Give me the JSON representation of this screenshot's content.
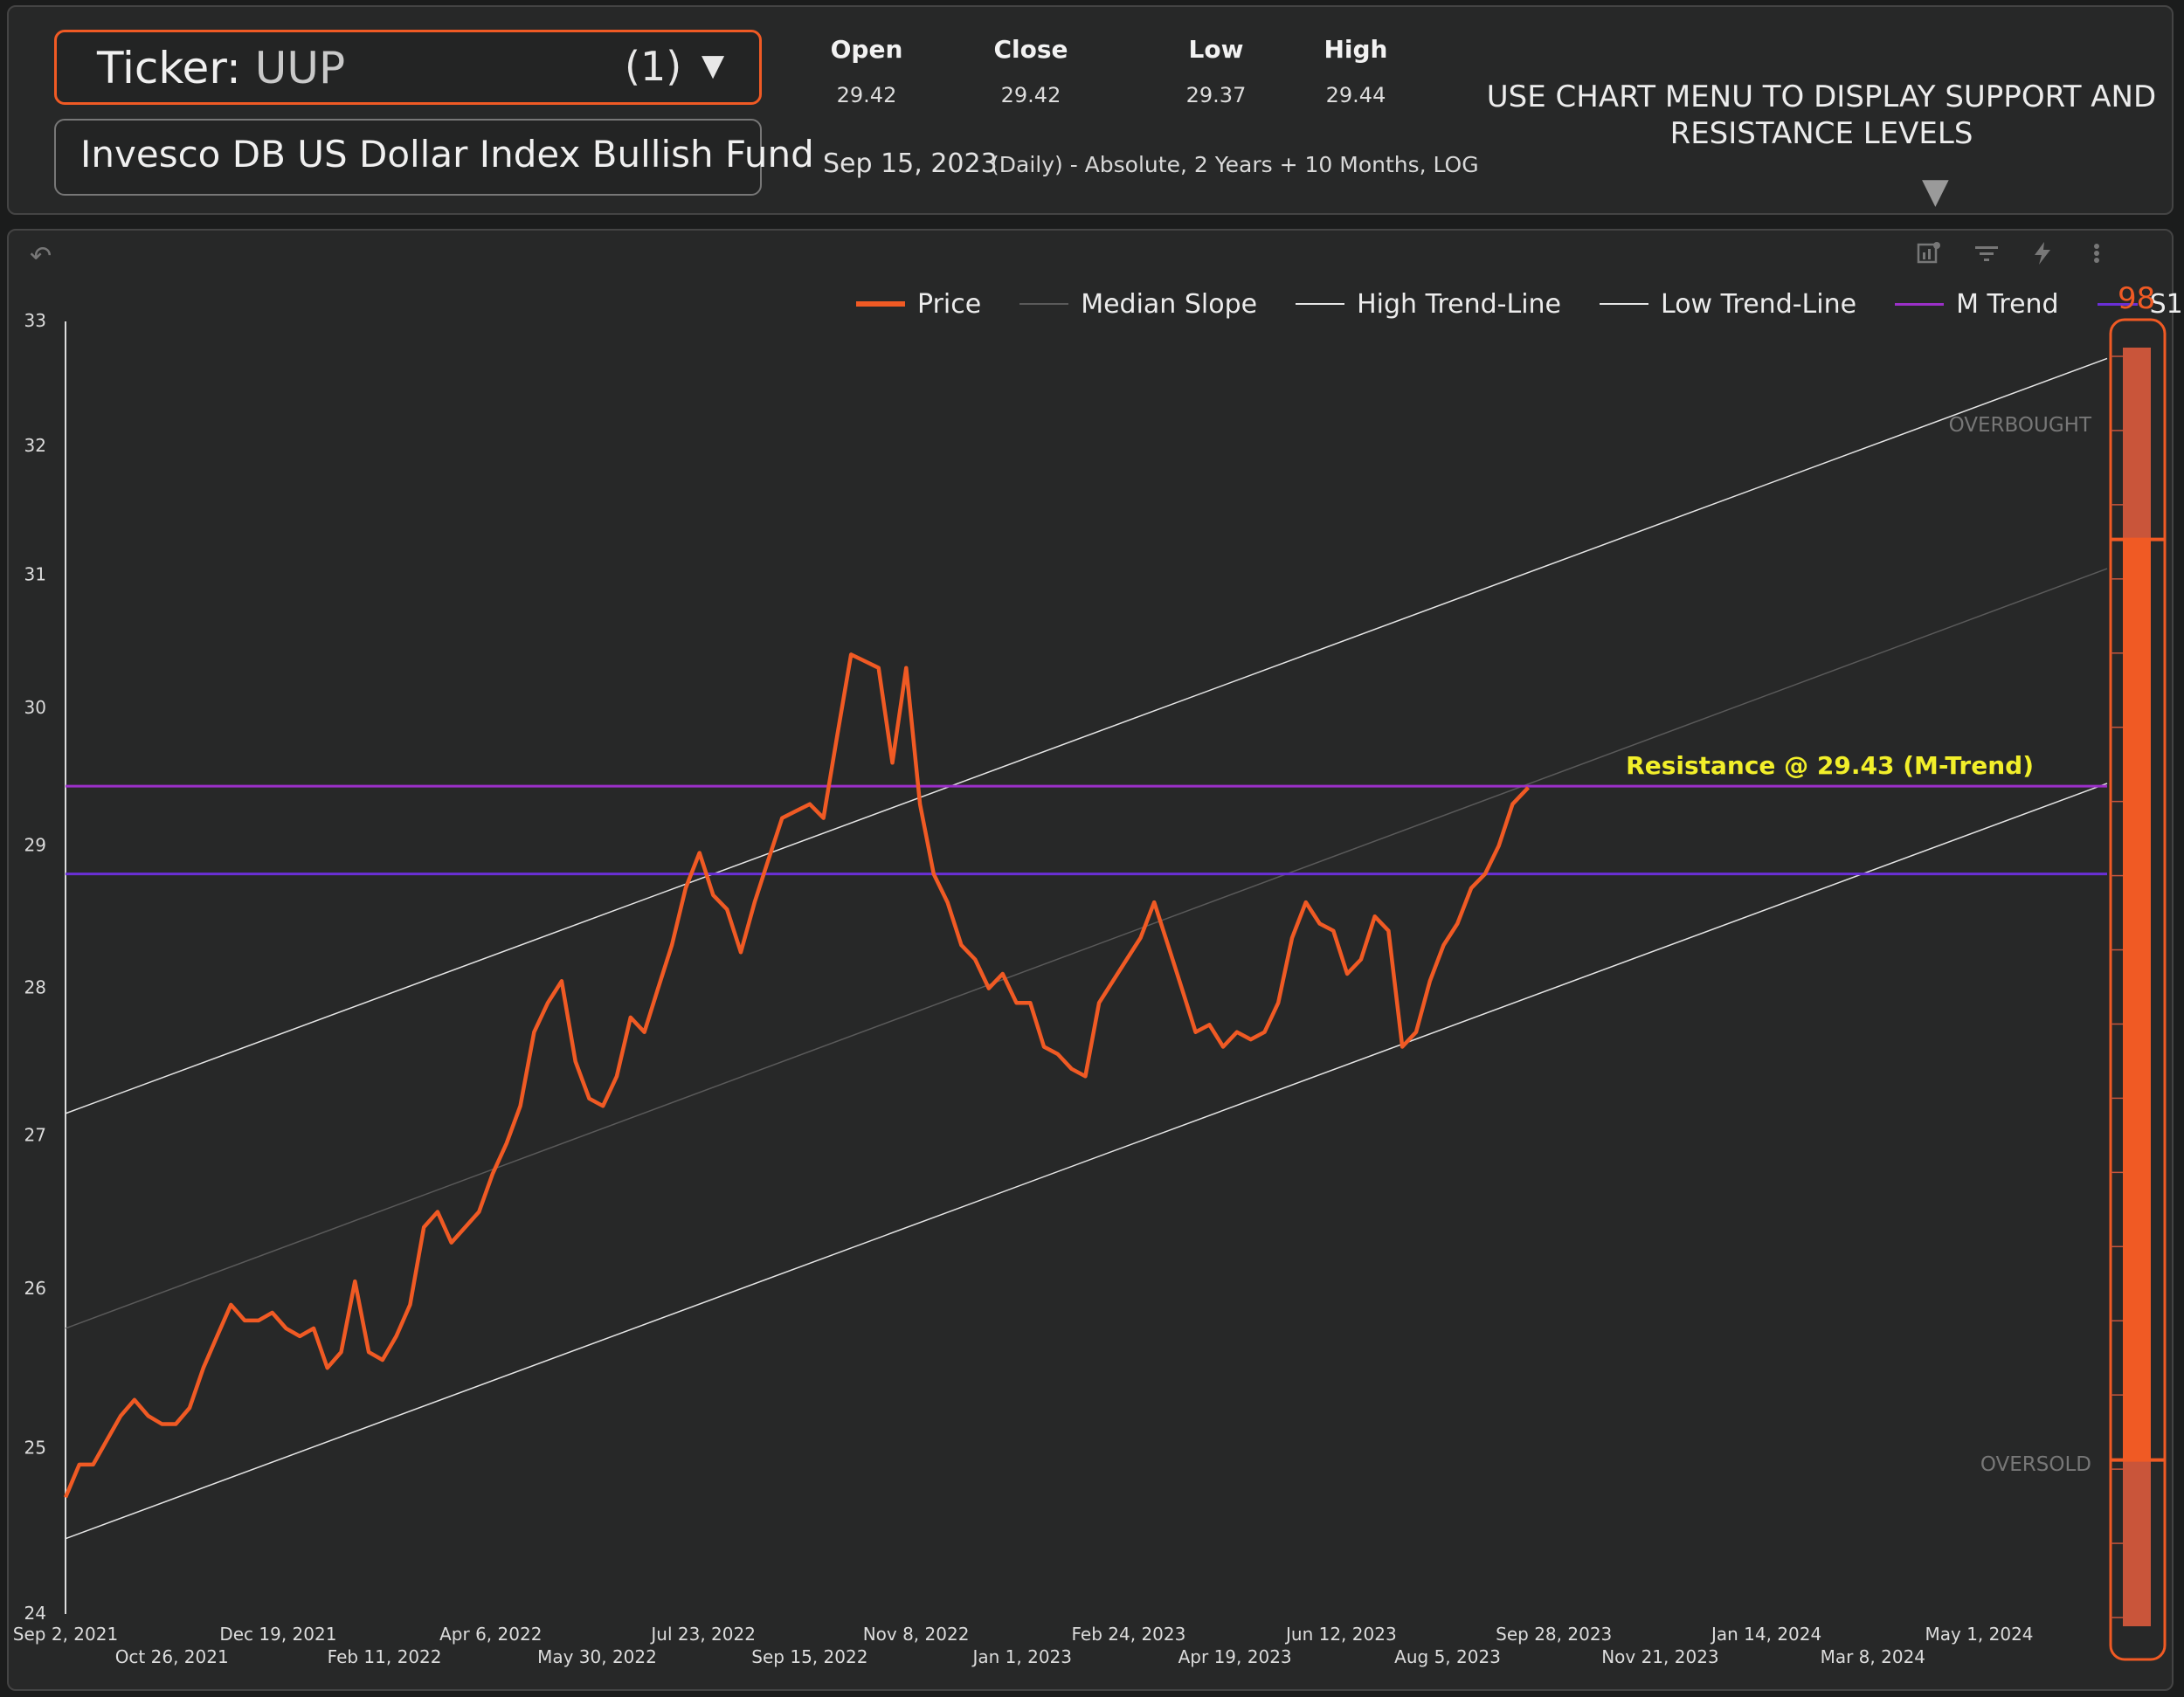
{
  "header": {
    "ticker_label": "Ticker",
    "ticker_sep": ": ",
    "ticker_value": "UUP",
    "ticker_count": "(1)",
    "fund_name": "Invesco DB US Dollar Index Bullish Fund",
    "stats": [
      {
        "label": "Open",
        "value": "29.42"
      },
      {
        "label": "Close",
        "value": "29.42"
      },
      {
        "label": "Low",
        "value": "29.37"
      },
      {
        "label": "High",
        "value": "29.44"
      }
    ],
    "date": "Sep 15, 2023",
    "period": "(Daily) - Absolute, 2 Years + 10 Months, LOG",
    "notice": "USE CHART MENU TO DISPLAY SUPPORT AND RESISTANCE LEVELS"
  },
  "toolbar": {
    "icons": [
      "undo-icon",
      "chart-settings-icon",
      "filter-icon",
      "lightning-icon",
      "more-vert-icon"
    ]
  },
  "legend": {
    "items": [
      {
        "name": "Price",
        "color": "#f05a24"
      },
      {
        "name": "Median Slope",
        "color": "#5a5a5a"
      },
      {
        "name": "High Trend-Line",
        "color": "#e6e6e6"
      },
      {
        "name": "Low Trend-Line",
        "color": "#e6e6e6"
      },
      {
        "name": "M Trend",
        "color": "#9b30c8"
      },
      {
        "name": "S1",
        "color": "#6a2fd6"
      }
    ],
    "page": "98"
  },
  "colors": {
    "price": "#f05a24",
    "resistance_text": "#f2ef2a",
    "m_trend": "#9b30c8",
    "s1": "#6a2fd6",
    "trend": "#e6e6e6",
    "median": "#5a5a5a",
    "gauge": "#f05a24"
  },
  "chart_data": {
    "type": "line",
    "title": "",
    "xlabel": "",
    "ylabel": "",
    "y_scale": "log",
    "ylim": [
      24,
      33
    ],
    "y_ticks": [
      24,
      25,
      26,
      27,
      28,
      29,
      30,
      31,
      32,
      33
    ],
    "x_range": [
      "2021-09-02",
      "2024-07-05"
    ],
    "x_ticks": [
      {
        "date": "2021-09-02",
        "label": "Sep 2, 2021"
      },
      {
        "date": "2021-10-26",
        "label": "Oct 26, 2021"
      },
      {
        "date": "2021-12-19",
        "label": "Dec 19, 2021"
      },
      {
        "date": "2022-02-11",
        "label": "Feb 11, 2022"
      },
      {
        "date": "2022-04-06",
        "label": "Apr 6, 2022"
      },
      {
        "date": "2022-05-30",
        "label": "May 30, 2022"
      },
      {
        "date": "2022-07-23",
        "label": "Jul 23, 2022"
      },
      {
        "date": "2022-09-15",
        "label": "Sep 15, 2022"
      },
      {
        "date": "2022-11-08",
        "label": "Nov 8, 2022"
      },
      {
        "date": "2023-01-01",
        "label": "Jan 1, 2023"
      },
      {
        "date": "2023-02-24",
        "label": "Feb 24, 2023"
      },
      {
        "date": "2023-04-19",
        "label": "Apr 19, 2023"
      },
      {
        "date": "2023-06-12",
        "label": "Jun 12, 2023"
      },
      {
        "date": "2023-08-05",
        "label": "Aug 5, 2023"
      },
      {
        "date": "2023-09-28",
        "label": "Sep 28, 2023"
      },
      {
        "date": "2023-11-21",
        "label": "Nov 21, 2023"
      },
      {
        "date": "2024-01-14",
        "label": "Jan 14, 2024"
      },
      {
        "date": "2024-03-08",
        "label": "Mar 8, 2024"
      },
      {
        "date": "2024-05-01",
        "label": "May 1, 2024"
      }
    ],
    "series": [
      {
        "name": "Price",
        "points": [
          [
            "2021-09-02",
            24.7
          ],
          [
            "2021-09-09",
            24.9
          ],
          [
            "2021-09-16",
            24.9
          ],
          [
            "2021-09-23",
            25.05
          ],
          [
            "2021-09-30",
            25.2
          ],
          [
            "2021-10-07",
            25.3
          ],
          [
            "2021-10-14",
            25.2
          ],
          [
            "2021-10-21",
            25.15
          ],
          [
            "2021-10-28",
            25.15
          ],
          [
            "2021-11-04",
            25.25
          ],
          [
            "2021-11-11",
            25.5
          ],
          [
            "2021-11-18",
            25.7
          ],
          [
            "2021-11-25",
            25.9
          ],
          [
            "2021-12-02",
            25.8
          ],
          [
            "2021-12-09",
            25.8
          ],
          [
            "2021-12-16",
            25.85
          ],
          [
            "2021-12-23",
            25.75
          ],
          [
            "2021-12-30",
            25.7
          ],
          [
            "2022-01-06",
            25.75
          ],
          [
            "2022-01-13",
            25.5
          ],
          [
            "2022-01-20",
            25.6
          ],
          [
            "2022-01-27",
            26.05
          ],
          [
            "2022-02-03",
            25.6
          ],
          [
            "2022-02-10",
            25.55
          ],
          [
            "2022-02-17",
            25.7
          ],
          [
            "2022-02-24",
            25.9
          ],
          [
            "2022-03-03",
            26.4
          ],
          [
            "2022-03-10",
            26.5
          ],
          [
            "2022-03-17",
            26.3
          ],
          [
            "2022-03-24",
            26.4
          ],
          [
            "2022-03-31",
            26.5
          ],
          [
            "2022-04-07",
            26.75
          ],
          [
            "2022-04-14",
            26.95
          ],
          [
            "2022-04-21",
            27.2
          ],
          [
            "2022-04-28",
            27.7
          ],
          [
            "2022-05-05",
            27.9
          ],
          [
            "2022-05-12",
            28.05
          ],
          [
            "2022-05-19",
            27.5
          ],
          [
            "2022-05-26",
            27.25
          ],
          [
            "2022-06-02",
            27.2
          ],
          [
            "2022-06-09",
            27.4
          ],
          [
            "2022-06-16",
            27.8
          ],
          [
            "2022-06-23",
            27.7
          ],
          [
            "2022-06-30",
            28.0
          ],
          [
            "2022-07-07",
            28.3
          ],
          [
            "2022-07-14",
            28.7
          ],
          [
            "2022-07-21",
            28.95
          ],
          [
            "2022-07-28",
            28.65
          ],
          [
            "2022-08-04",
            28.55
          ],
          [
            "2022-08-11",
            28.25
          ],
          [
            "2022-08-18",
            28.6
          ],
          [
            "2022-08-25",
            28.9
          ],
          [
            "2022-09-01",
            29.2
          ],
          [
            "2022-09-08",
            29.25
          ],
          [
            "2022-09-15",
            29.3
          ],
          [
            "2022-09-22",
            29.2
          ],
          [
            "2022-09-29",
            29.8
          ],
          [
            "2022-10-06",
            30.4
          ],
          [
            "2022-10-13",
            30.35
          ],
          [
            "2022-10-20",
            30.3
          ],
          [
            "2022-10-27",
            29.6
          ],
          [
            "2022-11-03",
            30.3
          ],
          [
            "2022-11-10",
            29.3
          ],
          [
            "2022-11-17",
            28.8
          ],
          [
            "2022-11-24",
            28.6
          ],
          [
            "2022-12-01",
            28.3
          ],
          [
            "2022-12-08",
            28.2
          ],
          [
            "2022-12-15",
            28.0
          ],
          [
            "2022-12-22",
            28.1
          ],
          [
            "2022-12-29",
            27.9
          ],
          [
            "2023-01-05",
            27.9
          ],
          [
            "2023-01-12",
            27.6
          ],
          [
            "2023-01-19",
            27.55
          ],
          [
            "2023-01-26",
            27.45
          ],
          [
            "2023-02-02",
            27.4
          ],
          [
            "2023-02-09",
            27.9
          ],
          [
            "2023-02-16",
            28.05
          ],
          [
            "2023-02-23",
            28.2
          ],
          [
            "2023-03-02",
            28.35
          ],
          [
            "2023-03-09",
            28.6
          ],
          [
            "2023-03-16",
            28.3
          ],
          [
            "2023-03-23",
            28.0
          ],
          [
            "2023-03-30",
            27.7
          ],
          [
            "2023-04-06",
            27.75
          ],
          [
            "2023-04-13",
            27.6
          ],
          [
            "2023-04-20",
            27.7
          ],
          [
            "2023-04-27",
            27.65
          ],
          [
            "2023-05-04",
            27.7
          ],
          [
            "2023-05-11",
            27.9
          ],
          [
            "2023-05-18",
            28.35
          ],
          [
            "2023-05-25",
            28.6
          ],
          [
            "2023-06-01",
            28.45
          ],
          [
            "2023-06-08",
            28.4
          ],
          [
            "2023-06-15",
            28.1
          ],
          [
            "2023-06-22",
            28.2
          ],
          [
            "2023-06-29",
            28.5
          ],
          [
            "2023-07-06",
            28.4
          ],
          [
            "2023-07-13",
            27.6
          ],
          [
            "2023-07-20",
            27.7
          ],
          [
            "2023-07-27",
            28.05
          ],
          [
            "2023-08-03",
            28.3
          ],
          [
            "2023-08-10",
            28.45
          ],
          [
            "2023-08-17",
            28.7
          ],
          [
            "2023-08-24",
            28.8
          ],
          [
            "2023-08-31",
            29.0
          ],
          [
            "2023-09-07",
            29.3
          ],
          [
            "2023-09-15",
            29.42
          ]
        ]
      },
      {
        "name": "Median Slope",
        "points": [
          [
            "2021-09-02",
            25.75
          ],
          [
            "2024-07-05",
            31.05
          ]
        ]
      },
      {
        "name": "High Trend-Line",
        "points": [
          [
            "2021-09-02",
            27.15
          ],
          [
            "2024-07-05",
            32.7
          ]
        ]
      },
      {
        "name": "Low Trend-Line",
        "points": [
          [
            "2021-09-02",
            24.45
          ],
          [
            "2024-07-05",
            29.45
          ]
        ]
      },
      {
        "name": "M Trend",
        "value": 29.43
      },
      {
        "name": "S1",
        "value": 28.8
      }
    ],
    "annotations": [
      {
        "text": "Resistance @ 29.43 (M-Trend)",
        "y": 29.43
      },
      {
        "text": "OVERBOUGHT"
      },
      {
        "text": "OVERSOLD"
      }
    ],
    "gauge": {
      "overbought_level": 0.85,
      "oversold_level": 0.13
    },
    "grid": false,
    "legend_position": "top"
  }
}
